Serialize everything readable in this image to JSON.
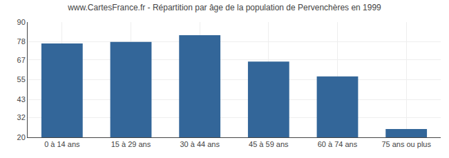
{
  "chart_data": {
    "type": "bar",
    "title": "www.CartesFrance.fr - Répartition par âge de la population de Pervenchères en 1999",
    "categories": [
      "0 à 14 ans",
      "15 à 29 ans",
      "30 à 44 ans",
      "45 à 59 ans",
      "60 à 74 ans",
      "75 ans ou plus"
    ],
    "values": [
      77,
      78,
      82,
      66,
      57,
      25
    ],
    "color": "#336699",
    "ylim": [
      20,
      90
    ],
    "yticks": [
      20,
      32,
      43,
      55,
      67,
      78,
      90
    ],
    "grid": true
  }
}
